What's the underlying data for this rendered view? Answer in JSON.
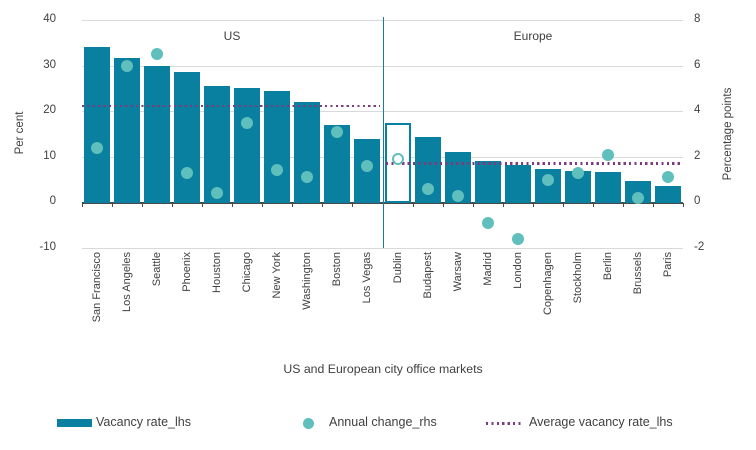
{
  "chart_data": {
    "type": "bar",
    "xlabel": "US and European city office markets",
    "ylabel_left": "Per cent",
    "ylabel_right": "Percentage points",
    "left_axis_ticks": [
      40,
      30,
      20,
      10,
      0,
      -10
    ],
    "right_axis_ticks": [
      8,
      6,
      4,
      2,
      0,
      -2
    ],
    "lhs_range": [
      -10,
      40
    ],
    "rhs_range": [
      -2,
      8
    ],
    "grid": "horizontal",
    "series": [
      {
        "name": "Vacancy rate_lhs",
        "type": "bar",
        "axis": "lhs",
        "color": "#0A80A0"
      },
      {
        "name": "Annual change_rhs",
        "type": "scatter",
        "axis": "rhs",
        "color": "#5FBFBC"
      },
      {
        "name": "Average vacancy rate_lhs",
        "type": "dotted-line",
        "axis": "lhs",
        "color": "#7D3C7D"
      }
    ],
    "groups": [
      {
        "label": "US",
        "average_vacancy_lhs": 21.2,
        "cities": [
          {
            "city": "San Francisco",
            "vacancy_lhs": 34.0,
            "annual_change_rhs": 2.4
          },
          {
            "city": "Los Angeles",
            "vacancy_lhs": 31.6,
            "annual_change_rhs": 6.0
          },
          {
            "city": "Seattle",
            "vacancy_lhs": 30.0,
            "annual_change_rhs": 6.5
          },
          {
            "city": "Phoenix",
            "vacancy_lhs": 28.6,
            "annual_change_rhs": 1.3
          },
          {
            "city": "Houston",
            "vacancy_lhs": 25.6,
            "annual_change_rhs": 0.4
          },
          {
            "city": "Chicago",
            "vacancy_lhs": 25.0,
            "annual_change_rhs": 3.5
          },
          {
            "city": "New York",
            "vacancy_lhs": 24.4,
            "annual_change_rhs": 1.4
          },
          {
            "city": "Washington",
            "vacancy_lhs": 22.0,
            "annual_change_rhs": 1.1
          },
          {
            "city": "Boston",
            "vacancy_lhs": 17.0,
            "annual_change_rhs": 3.1
          },
          {
            "city": "Los Vegas",
            "vacancy_lhs": 14.0,
            "annual_change_rhs": 1.6
          }
        ]
      },
      {
        "label": "Europe",
        "average_vacancy_lhs": 8.6,
        "cities": [
          {
            "city": "Dublin",
            "vacancy_lhs": 17.5,
            "annual_change_rhs": 1.9,
            "highlight_outline": true
          },
          {
            "city": "Budapest",
            "vacancy_lhs": 14.3,
            "annual_change_rhs": 0.6
          },
          {
            "city": "Warsaw",
            "vacancy_lhs": 11.0,
            "annual_change_rhs": 0.3
          },
          {
            "city": "Madrid",
            "vacancy_lhs": 9.0,
            "annual_change_rhs": -0.9
          },
          {
            "city": "London",
            "vacancy_lhs": 8.1,
            "annual_change_rhs": -1.6
          },
          {
            "city": "Copenhagen",
            "vacancy_lhs": 7.3,
            "annual_change_rhs": 1.0
          },
          {
            "city": "Stockholm",
            "vacancy_lhs": 6.9,
            "annual_change_rhs": 1.3
          },
          {
            "city": "Berlin",
            "vacancy_lhs": 6.7,
            "annual_change_rhs": 2.1
          },
          {
            "city": "Brussels",
            "vacancy_lhs": 4.6,
            "annual_change_rhs": 0.2
          },
          {
            "city": "Paris",
            "vacancy_lhs": 3.7,
            "annual_change_rhs": 1.1
          }
        ]
      }
    ],
    "colors": {
      "bar": "#0A80A0",
      "dot": "#5FBFBC",
      "average_line": "#7D3C7D",
      "separator_line": "#1B79A8",
      "gridline": "#D9D9D9",
      "text": "#404040"
    }
  },
  "legend": {
    "items": [
      {
        "label": "Vacancy rate_lhs",
        "swatch": "bar",
        "color": "#0A80A0"
      },
      {
        "label": "Annual change_rhs",
        "swatch": "dot",
        "color": "#5FBFBC"
      },
      {
        "label": "Average vacancy rate_lhs",
        "swatch": "dotted-line",
        "color": "#7D3C7D"
      }
    ]
  }
}
